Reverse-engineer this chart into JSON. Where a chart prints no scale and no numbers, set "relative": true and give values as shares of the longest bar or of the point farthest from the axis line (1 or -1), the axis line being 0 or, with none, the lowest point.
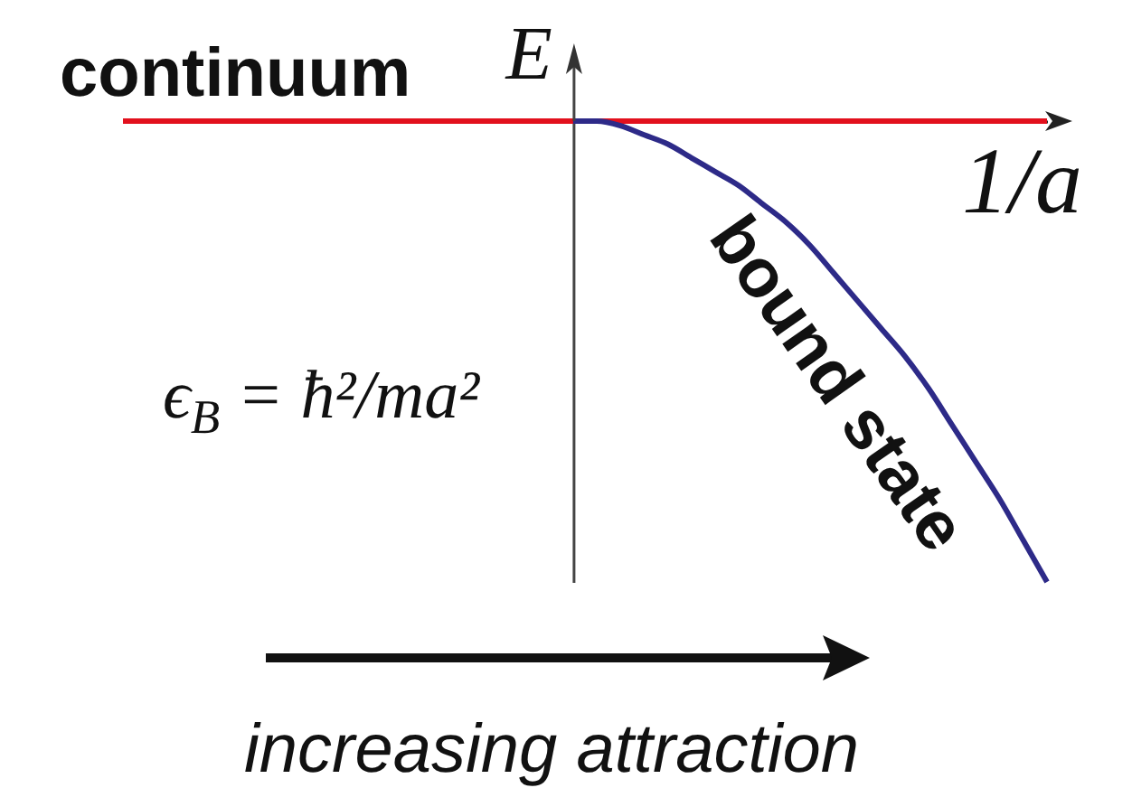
{
  "chart_data": {
    "type": "line",
    "relative": true,
    "xlabel": "1/a",
    "ylabel": "E",
    "categories": [
      null,
      null,
      null,
      null,
      null,
      null,
      null,
      null,
      null,
      null,
      null,
      null,
      null,
      null,
      null,
      null,
      null,
      null,
      null,
      null,
      null,
      null,
      null,
      null,
      null,
      null,
      null,
      null,
      null,
      null,
      null,
      null,
      null,
      null,
      null,
      null,
      null,
      null,
      null,
      null
    ],
    "series": [
      {
        "name": "continuum",
        "color": "#e2101d",
        "values": [
          0,
          0,
          0,
          0,
          0,
          0,
          0,
          0,
          0,
          0,
          0,
          0,
          0,
          0,
          0,
          0,
          0,
          0,
          0,
          0,
          0,
          0,
          0,
          0,
          0,
          0,
          0,
          0,
          0,
          0,
          0,
          0,
          0,
          0,
          0,
          0,
          0,
          0,
          0,
          0
        ]
      },
      {
        "name": "bound state",
        "color": "#2d2a88",
        "values": [
          null,
          null,
          null,
          null,
          null,
          null,
          null,
          null,
          null,
          null,
          null,
          null,
          null,
          null,
          null,
          null,
          null,
          null,
          null,
          0,
          0,
          -0.01,
          -0.03,
          -0.05,
          -0.08,
          -0.11,
          -0.14,
          -0.18,
          -0.22,
          -0.27,
          -0.33,
          -0.39,
          -0.45,
          -0.51,
          -0.58,
          -0.66,
          -0.74,
          -0.82,
          -0.91,
          -1
        ]
      }
    ],
    "annotations": [
      "ϵ$_{B}$ = ħ²/ma²",
      "increasing attraction"
    ]
  }
}
